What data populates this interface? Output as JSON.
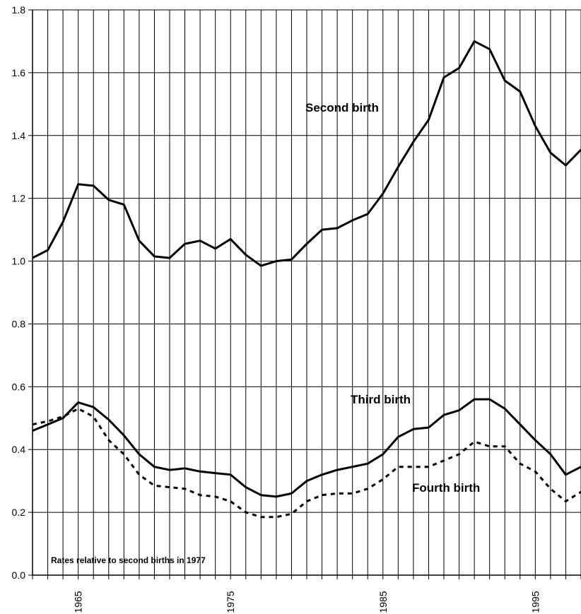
{
  "chart_data": {
    "type": "line",
    "annotation": "Rates relative to second births in 1977",
    "x": [
      1962,
      1963,
      1964,
      1965,
      1966,
      1967,
      1968,
      1969,
      1970,
      1971,
      1972,
      1973,
      1974,
      1975,
      1976,
      1977,
      1978,
      1979,
      1980,
      1981,
      1982,
      1983,
      1984,
      1985,
      1986,
      1987,
      1988,
      1989,
      1990,
      1991,
      1992,
      1993,
      1994,
      1995,
      1996,
      1997,
      1998
    ],
    "xlim": [
      1962,
      1998
    ],
    "xticks": [
      1965,
      1975,
      1985,
      1995
    ],
    "ylim": [
      0,
      1.8
    ],
    "yticks": [
      {
        "value": 0,
        "label": "0.0"
      },
      0.2,
      0.4,
      0.6,
      0.8,
      {
        "value": 1,
        "label": "1.0"
      },
      1.2,
      1.4,
      1.6,
      1.8
    ],
    "grid": true,
    "series": [
      {
        "name": "Second birth",
        "color": "#000000",
        "style": "solid",
        "values": [
          1.01,
          1.035,
          1.125,
          1.245,
          1.24,
          1.195,
          1.18,
          1.065,
          1.015,
          1.01,
          1.055,
          1.065,
          1.04,
          1.07,
          1.02,
          0.985,
          1.0,
          1.005,
          1.055,
          1.1,
          1.105,
          1.13,
          1.15,
          1.215,
          1.3,
          1.38,
          1.45,
          1.585,
          1.615,
          1.7,
          1.675,
          1.575,
          1.54,
          1.43,
          1.345,
          1.305,
          1.355
        ]
      },
      {
        "name": "Third birth",
        "color": "#000000",
        "style": "solid",
        "values": [
          0.46,
          0.48,
          0.5,
          0.55,
          0.535,
          0.495,
          0.445,
          0.385,
          0.345,
          0.335,
          0.34,
          0.33,
          0.325,
          0.32,
          0.28,
          0.255,
          0.25,
          0.26,
          0.3,
          0.32,
          0.335,
          0.345,
          0.355,
          0.385,
          0.44,
          0.465,
          0.47,
          0.51,
          0.525,
          0.56,
          0.56,
          0.53,
          0.48,
          0.43,
          0.385,
          0.32,
          0.345
        ]
      },
      {
        "name": "Fourth birth",
        "color": "#000000",
        "style": "dotted",
        "values": [
          0.48,
          0.49,
          0.505,
          0.53,
          0.505,
          0.43,
          0.385,
          0.32,
          0.285,
          0.28,
          0.275,
          0.255,
          0.25,
          0.235,
          0.2,
          0.185,
          0.185,
          0.195,
          0.235,
          0.255,
          0.26,
          0.26,
          0.275,
          0.305,
          0.345,
          0.345,
          0.345,
          0.365,
          0.385,
          0.425,
          0.41,
          0.41,
          0.355,
          0.33,
          0.275,
          0.235,
          0.265
        ]
      }
    ]
  }
}
